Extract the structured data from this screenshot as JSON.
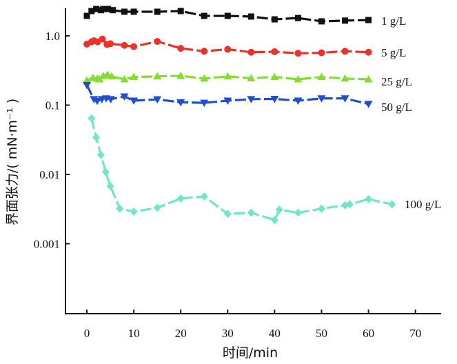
{
  "chart_data": {
    "type": "line",
    "title": "",
    "xlabel": "时间/min",
    "ylabel": "界面张力/( mN·m⁻¹ )",
    "xlim": [
      -4.5,
      75.5
    ],
    "ylim": [
      0.0001,
      2.6
    ],
    "yscale": "log",
    "grid": false,
    "legend": "labels at line ends (right)",
    "x_ticks": [
      "0",
      "10",
      "20",
      "30",
      "40",
      "50",
      "60",
      "70"
    ],
    "y_ticks": [
      {
        "value": 1.0,
        "label": "1.0"
      },
      {
        "value": 0.1,
        "label": "0.1"
      },
      {
        "value": 0.01,
        "label": "0.01"
      },
      {
        "value": 0.001,
        "label": "0.001"
      }
    ],
    "series": [
      {
        "name": "1 g/L",
        "color": "#111111",
        "marker": "square",
        "x": [
          0,
          1,
          2,
          3,
          3.5,
          4.5,
          5.5,
          8,
          10,
          15,
          20,
          25,
          30,
          35,
          40,
          45,
          50,
          55,
          60
        ],
        "y": [
          1.94,
          2.28,
          2.44,
          2.35,
          2.44,
          2.44,
          2.35,
          2.23,
          2.23,
          2.23,
          2.28,
          1.94,
          1.94,
          1.9,
          1.73,
          1.81,
          1.62,
          1.66,
          1.69
        ]
      },
      {
        "name": "5 g/L",
        "color": "#e8332b",
        "marker": "circle",
        "x": [
          0,
          1,
          1.5,
          2.3,
          3.3,
          4.3,
          5,
          8,
          10,
          15,
          20,
          25,
          30,
          35,
          40,
          45,
          50,
          55,
          60
        ],
        "y": [
          0.76,
          0.82,
          0.85,
          0.82,
          0.9,
          0.75,
          0.77,
          0.73,
          0.7,
          0.83,
          0.66,
          0.6,
          0.64,
          0.58,
          0.59,
          0.56,
          0.57,
          0.6,
          0.58
        ]
      },
      {
        "name": "25 g/L",
        "color": "#84dc2e",
        "marker": "triangle-up",
        "x": [
          0,
          1.3,
          2.2,
          2.7,
          3.5,
          4.4,
          5.3,
          8,
          10,
          15,
          20,
          25,
          30,
          35,
          40,
          45,
          50,
          55,
          60
        ],
        "y": [
          0.227,
          0.249,
          0.242,
          0.236,
          0.265,
          0.275,
          0.26,
          0.236,
          0.255,
          0.26,
          0.265,
          0.242,
          0.26,
          0.245,
          0.255,
          0.236,
          0.255,
          0.242,
          0.236
        ]
      },
      {
        "name": "50 g/L",
        "color": "#1f4fcf",
        "marker": "triangle-down",
        "x": [
          0,
          1.5,
          2.2,
          3.2,
          4.1,
          5.1,
          8,
          10,
          15,
          20,
          25,
          30,
          35,
          40,
          45,
          50,
          55,
          60
        ],
        "y": [
          0.195,
          0.122,
          0.115,
          0.122,
          0.125,
          0.122,
          0.133,
          0.116,
          0.121,
          0.11,
          0.108,
          0.116,
          0.122,
          0.123,
          0.116,
          0.125,
          0.125,
          0.104
        ]
      },
      {
        "name": "100 g/L",
        "color": "#6fe6c6",
        "marker": "diamond",
        "x": [
          1,
          2,
          3,
          4,
          5,
          7,
          10,
          15,
          20,
          25,
          30,
          35,
          40,
          41,
          45,
          50,
          55,
          56,
          60,
          65
        ],
        "y": [
          0.0644,
          0.034,
          0.0191,
          0.0109,
          0.0068,
          0.0032,
          0.0029,
          0.0033,
          0.0045,
          0.0048,
          0.0027,
          0.0028,
          0.0022,
          0.0031,
          0.0028,
          0.0032,
          0.0036,
          0.0037,
          0.0044,
          0.0037
        ]
      }
    ]
  }
}
